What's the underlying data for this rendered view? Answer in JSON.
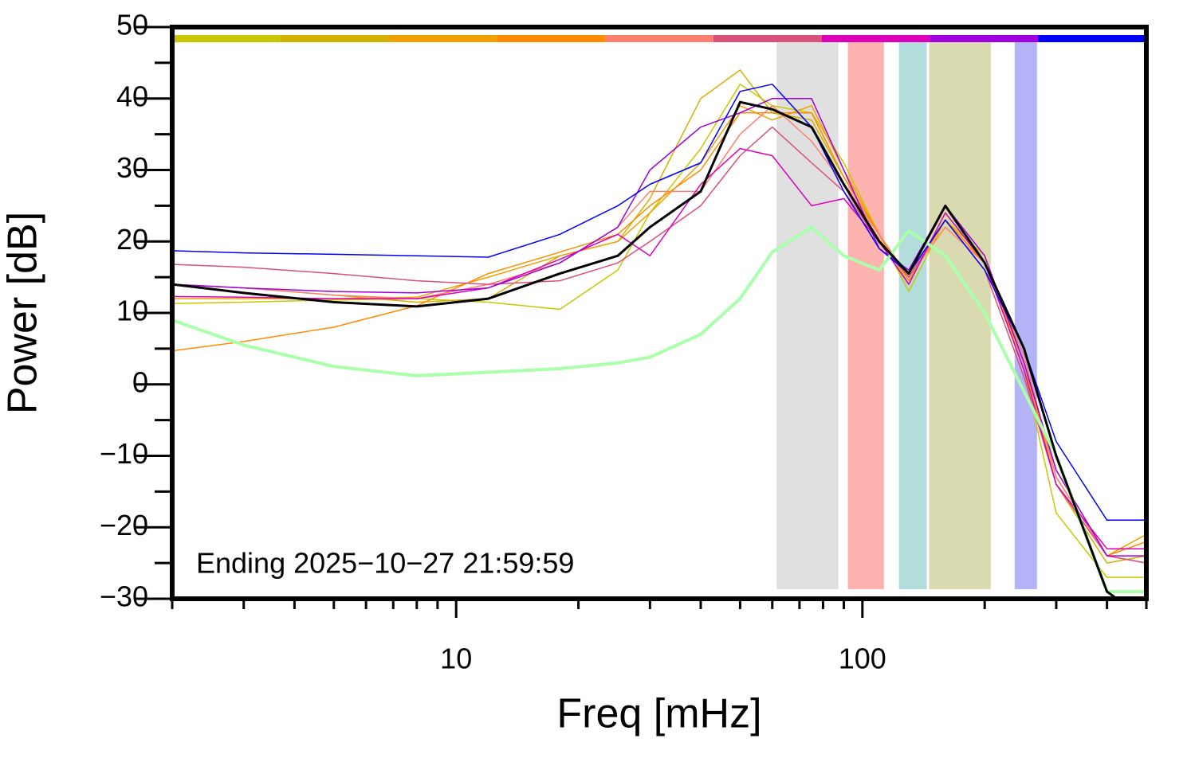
{
  "chart_data": {
    "type": "line",
    "xlabel": "Freq [mHz]",
    "ylabel": "Power [dB]",
    "annotation": "Ending 2025−10−27 21:59:59",
    "xscale": "log",
    "xlim": [
      2,
      500
    ],
    "xticks": [
      10,
      100
    ],
    "xminor_ticks": [
      2,
      3,
      4,
      5,
      6,
      7,
      8,
      9,
      20,
      30,
      40,
      50,
      60,
      70,
      80,
      90,
      200,
      300,
      400,
      500
    ],
    "ylim": [
      -30,
      50
    ],
    "yticks": [
      {
        "value": -30,
        "label": "−30"
      },
      {
        "value": -20,
        "label": "−20"
      },
      {
        "value": -10,
        "label": "−10"
      },
      0,
      10,
      20,
      30,
      40,
      50
    ],
    "yminor_ticks": [
      -25,
      -15,
      -5,
      5,
      15,
      25,
      35,
      45
    ],
    "bands": [
      {
        "xmin": 61.5,
        "xmax": 87.3,
        "color": "#e0e0e0"
      },
      {
        "xmin": 92.1,
        "xmax": 113,
        "color": "#ffb3b0"
      },
      {
        "xmin": 123,
        "xmax": 144,
        "color": "#b3dcdc"
      },
      {
        "xmin": 146,
        "xmax": 207,
        "color": "#dadab0"
      },
      {
        "xmin": 237,
        "xmax": 269,
        "color": "#b3b3f5"
      }
    ],
    "x": [
      2,
      3,
      5,
      8,
      12,
      18,
      25,
      30,
      40,
      50,
      60,
      75,
      90,
      110,
      130,
      160,
      200,
      250,
      300,
      400,
      500
    ],
    "series": [
      {
        "color": "#c8c800",
        "width": 1.5,
        "strip": true,
        "values": [
          11.3,
          11.5,
          11.8,
          12,
          11.5,
          10.5,
          16,
          24,
          33,
          42,
          39,
          38,
          31,
          21,
          13,
          23,
          18,
          2,
          -18,
          -27,
          -27
        ]
      },
      {
        "color": "#d4b000",
        "width": 1.5,
        "strip": true,
        "values": [
          14,
          13.5,
          12.5,
          11.5,
          12,
          18,
          20,
          26,
          40,
          44,
          38,
          37,
          29,
          21,
          14,
          24,
          17,
          3,
          -14,
          -25,
          -24
        ]
      },
      {
        "color": "#f0a000",
        "width": 1.5,
        "strip": true,
        "values": [
          12,
          12,
          12,
          12.2,
          15,
          18,
          20,
          24,
          31,
          39,
          37,
          39,
          30,
          21,
          15,
          23,
          17,
          2,
          -12,
          -24,
          -21
        ]
      },
      {
        "color": "#ff8c00",
        "width": 1.5,
        "strip": true,
        "values": [
          4.7,
          6,
          8,
          11,
          15.5,
          18.5,
          21,
          25,
          30,
          38,
          38,
          38,
          29,
          21,
          14.5,
          23,
          17,
          3,
          -13,
          -24,
          -22
        ]
      },
      {
        "color": "#ff7f6e",
        "width": 1.5,
        "strip": true,
        "values": [
          14,
          13.5,
          12.5,
          12,
          14,
          17,
          22,
          27,
          27,
          35,
          39,
          34,
          28,
          21,
          15,
          22,
          17,
          4,
          -13,
          -24,
          -25
        ]
      },
      {
        "color": "#d9507a",
        "width": 1.5,
        "strip": true,
        "values": [
          16.8,
          16.4,
          15.5,
          14.5,
          14,
          14.5,
          17,
          20,
          25,
          32,
          36,
          31,
          27,
          20,
          15,
          23,
          16,
          1,
          -14,
          -24,
          -25
        ]
      },
      {
        "color": "#dd00bb",
        "width": 1.5,
        "strip": true,
        "values": [
          12.3,
          12.2,
          12,
          12,
          13.5,
          17.5,
          21,
          18,
          28,
          33,
          32,
          25,
          26,
          20,
          14,
          24,
          17,
          2,
          -14,
          -23,
          -23
        ]
      },
      {
        "color": "#a000e0",
        "width": 1.5,
        "strip": true,
        "values": [
          14,
          13.5,
          13,
          12.8,
          13.5,
          17,
          22,
          30,
          36,
          38,
          40,
          40,
          30,
          19,
          16,
          25,
          18,
          3,
          -12,
          -24,
          -24
        ]
      },
      {
        "color": "#0000ff",
        "width": 1.5,
        "strip": true,
        "values": [
          18.7,
          18.4,
          18.2,
          18,
          17.8,
          21,
          25,
          28,
          31,
          41,
          42,
          36,
          27,
          19,
          15.5,
          23,
          16,
          5,
          -8,
          -19,
          -19
        ]
      },
      {
        "color": "#aaffaa",
        "width": 4,
        "values": [
          9,
          5.5,
          2.5,
          1.2,
          1.7,
          2.2,
          3,
          3.8,
          7,
          12,
          18.5,
          22,
          18,
          16,
          21.5,
          18,
          10,
          -1,
          -10,
          -29,
          -29
        ]
      },
      {
        "color": "#000000",
        "width": 3,
        "values": [
          14,
          12.8,
          11.5,
          10.9,
          12,
          15.5,
          18,
          22,
          27,
          39.5,
          38.5,
          36,
          28,
          20,
          15.5,
          25,
          17,
          5,
          -10,
          -29,
          -33
        ]
      }
    ]
  }
}
